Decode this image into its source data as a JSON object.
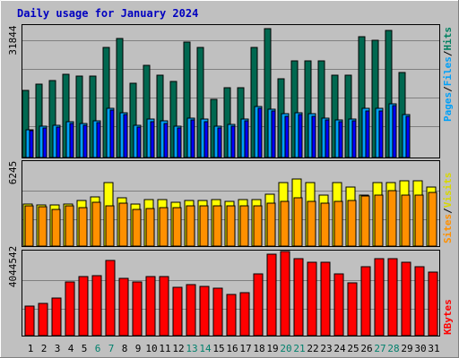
{
  "chart_data": [
    {
      "type": "bar",
      "title": "Daily usage for January 2024",
      "categories": [
        "1",
        "2",
        "3",
        "4",
        "5",
        "6",
        "7",
        "8",
        "9",
        "10",
        "11",
        "12",
        "13",
        "14",
        "15",
        "16",
        "17",
        "18",
        "19",
        "20",
        "21",
        "22",
        "23",
        "24",
        "25",
        "26",
        "27",
        "28",
        "29",
        "30",
        "31"
      ],
      "weekend_days": [
        "6",
        "7",
        "13",
        "14",
        "20",
        "21",
        "27",
        "28"
      ],
      "y_tick_label": "31844",
      "ylim": [
        0,
        39000
      ],
      "ylabel_parts": [
        "Pages",
        "/",
        "Files",
        "/",
        "Hits"
      ],
      "series": [
        {
          "name": "Hits",
          "color": "#006850",
          "values": [
            19700,
            21500,
            22600,
            24400,
            24000,
            24000,
            32300,
            35100,
            21800,
            27100,
            24200,
            22400,
            33900,
            32300,
            17000,
            20500,
            20500,
            32300,
            37900,
            23300,
            28400,
            28400,
            28400,
            24200,
            24200,
            35700,
            34600,
            37300,
            25000,
            null,
            null
          ]
        },
        {
          "name": "Files",
          "color": "#00a0f8",
          "values": [
            8300,
            9200,
            9500,
            10600,
            10000,
            10900,
            14600,
            13300,
            9500,
            11200,
            10700,
            9200,
            11600,
            11200,
            9300,
            9700,
            11400,
            15000,
            14300,
            12800,
            13300,
            12800,
            11700,
            11100,
            11400,
            14400,
            14400,
            15800,
            12700,
            null,
            null
          ]
        },
        {
          "name": "Pages",
          "color": "#0000ff",
          "values": [
            7900,
            8700,
            8900,
            10000,
            9500,
            10400,
            14000,
            12700,
            9000,
            10600,
            10100,
            8700,
            11000,
            10600,
            8800,
            9200,
            10800,
            14400,
            13700,
            12200,
            12700,
            12200,
            11100,
            10500,
            10800,
            13800,
            13800,
            15200,
            12100,
            null,
            null
          ]
        }
      ]
    },
    {
      "type": "bar",
      "categories": [
        "1",
        "2",
        "3",
        "4",
        "5",
        "6",
        "7",
        "8",
        "9",
        "10",
        "11",
        "12",
        "13",
        "14",
        "15",
        "16",
        "17",
        "18",
        "19",
        "20",
        "21",
        "22",
        "23",
        "24",
        "25",
        "26",
        "27",
        "28",
        "29",
        "30",
        "31"
      ],
      "y_tick_label": "6245",
      "ylim": [
        0,
        7840
      ],
      "ylabel_parts": [
        "Sites",
        "/",
        "Visits"
      ],
      "series": [
        {
          "name": "Visits",
          "color": "#ffff00",
          "values": [
            3900,
            3810,
            3760,
            3860,
            4230,
            4540,
            5880,
            4450,
            3860,
            4330,
            4330,
            4060,
            4180,
            4180,
            4270,
            4140,
            4270,
            4330,
            4750,
            5830,
            6160,
            5880,
            4720,
            5830,
            5430,
            4720,
            5830,
            5830,
            6060,
            6060,
            5430
          ]
        },
        {
          "name": "Sites",
          "color": "#ff9000",
          "values": [
            3680,
            3590,
            3410,
            3720,
            3550,
            4010,
            3680,
            3940,
            3350,
            3460,
            3540,
            3540,
            3720,
            3720,
            3720,
            3680,
            3720,
            3720,
            3950,
            4160,
            4420,
            4160,
            4000,
            4160,
            4220,
            4600,
            4680,
            5130,
            4730,
            4730,
            4940
          ]
        }
      ]
    },
    {
      "type": "bar",
      "categories": [
        "1",
        "2",
        "3",
        "4",
        "5",
        "6",
        "7",
        "8",
        "9",
        "10",
        "11",
        "12",
        "13",
        "14",
        "15",
        "16",
        "17",
        "18",
        "19",
        "20",
        "21",
        "22",
        "23",
        "24",
        "25",
        "26",
        "27",
        "28",
        "29",
        "30",
        "31"
      ],
      "y_tick_label": "4044542",
      "ylim": [
        0,
        5720000
      ],
      "ylabel_parts": [
        "KBytes"
      ],
      "series": [
        {
          "name": "KBytes",
          "color": "#ff0000",
          "values": [
            1960000,
            2170000,
            2550000,
            3640000,
            3960000,
            4040000,
            5040000,
            3850000,
            3640000,
            3960000,
            4000000,
            3260000,
            3440000,
            3340000,
            3170000,
            2740000,
            2870000,
            4140000,
            5470000,
            5660000,
            5180000,
            4940000,
            4940000,
            4140000,
            3560000,
            4660000,
            5180000,
            5180000,
            4960000,
            4660000,
            4300000
          ]
        }
      ]
    }
  ],
  "colors": {
    "background": "#c0c0c0",
    "plot_background": "#c0c0c0",
    "gridline": "#808080",
    "title": "#0000c0",
    "axis_text": "#000000",
    "weekend_text": "#00806c",
    "bar_outline": "#000000"
  }
}
